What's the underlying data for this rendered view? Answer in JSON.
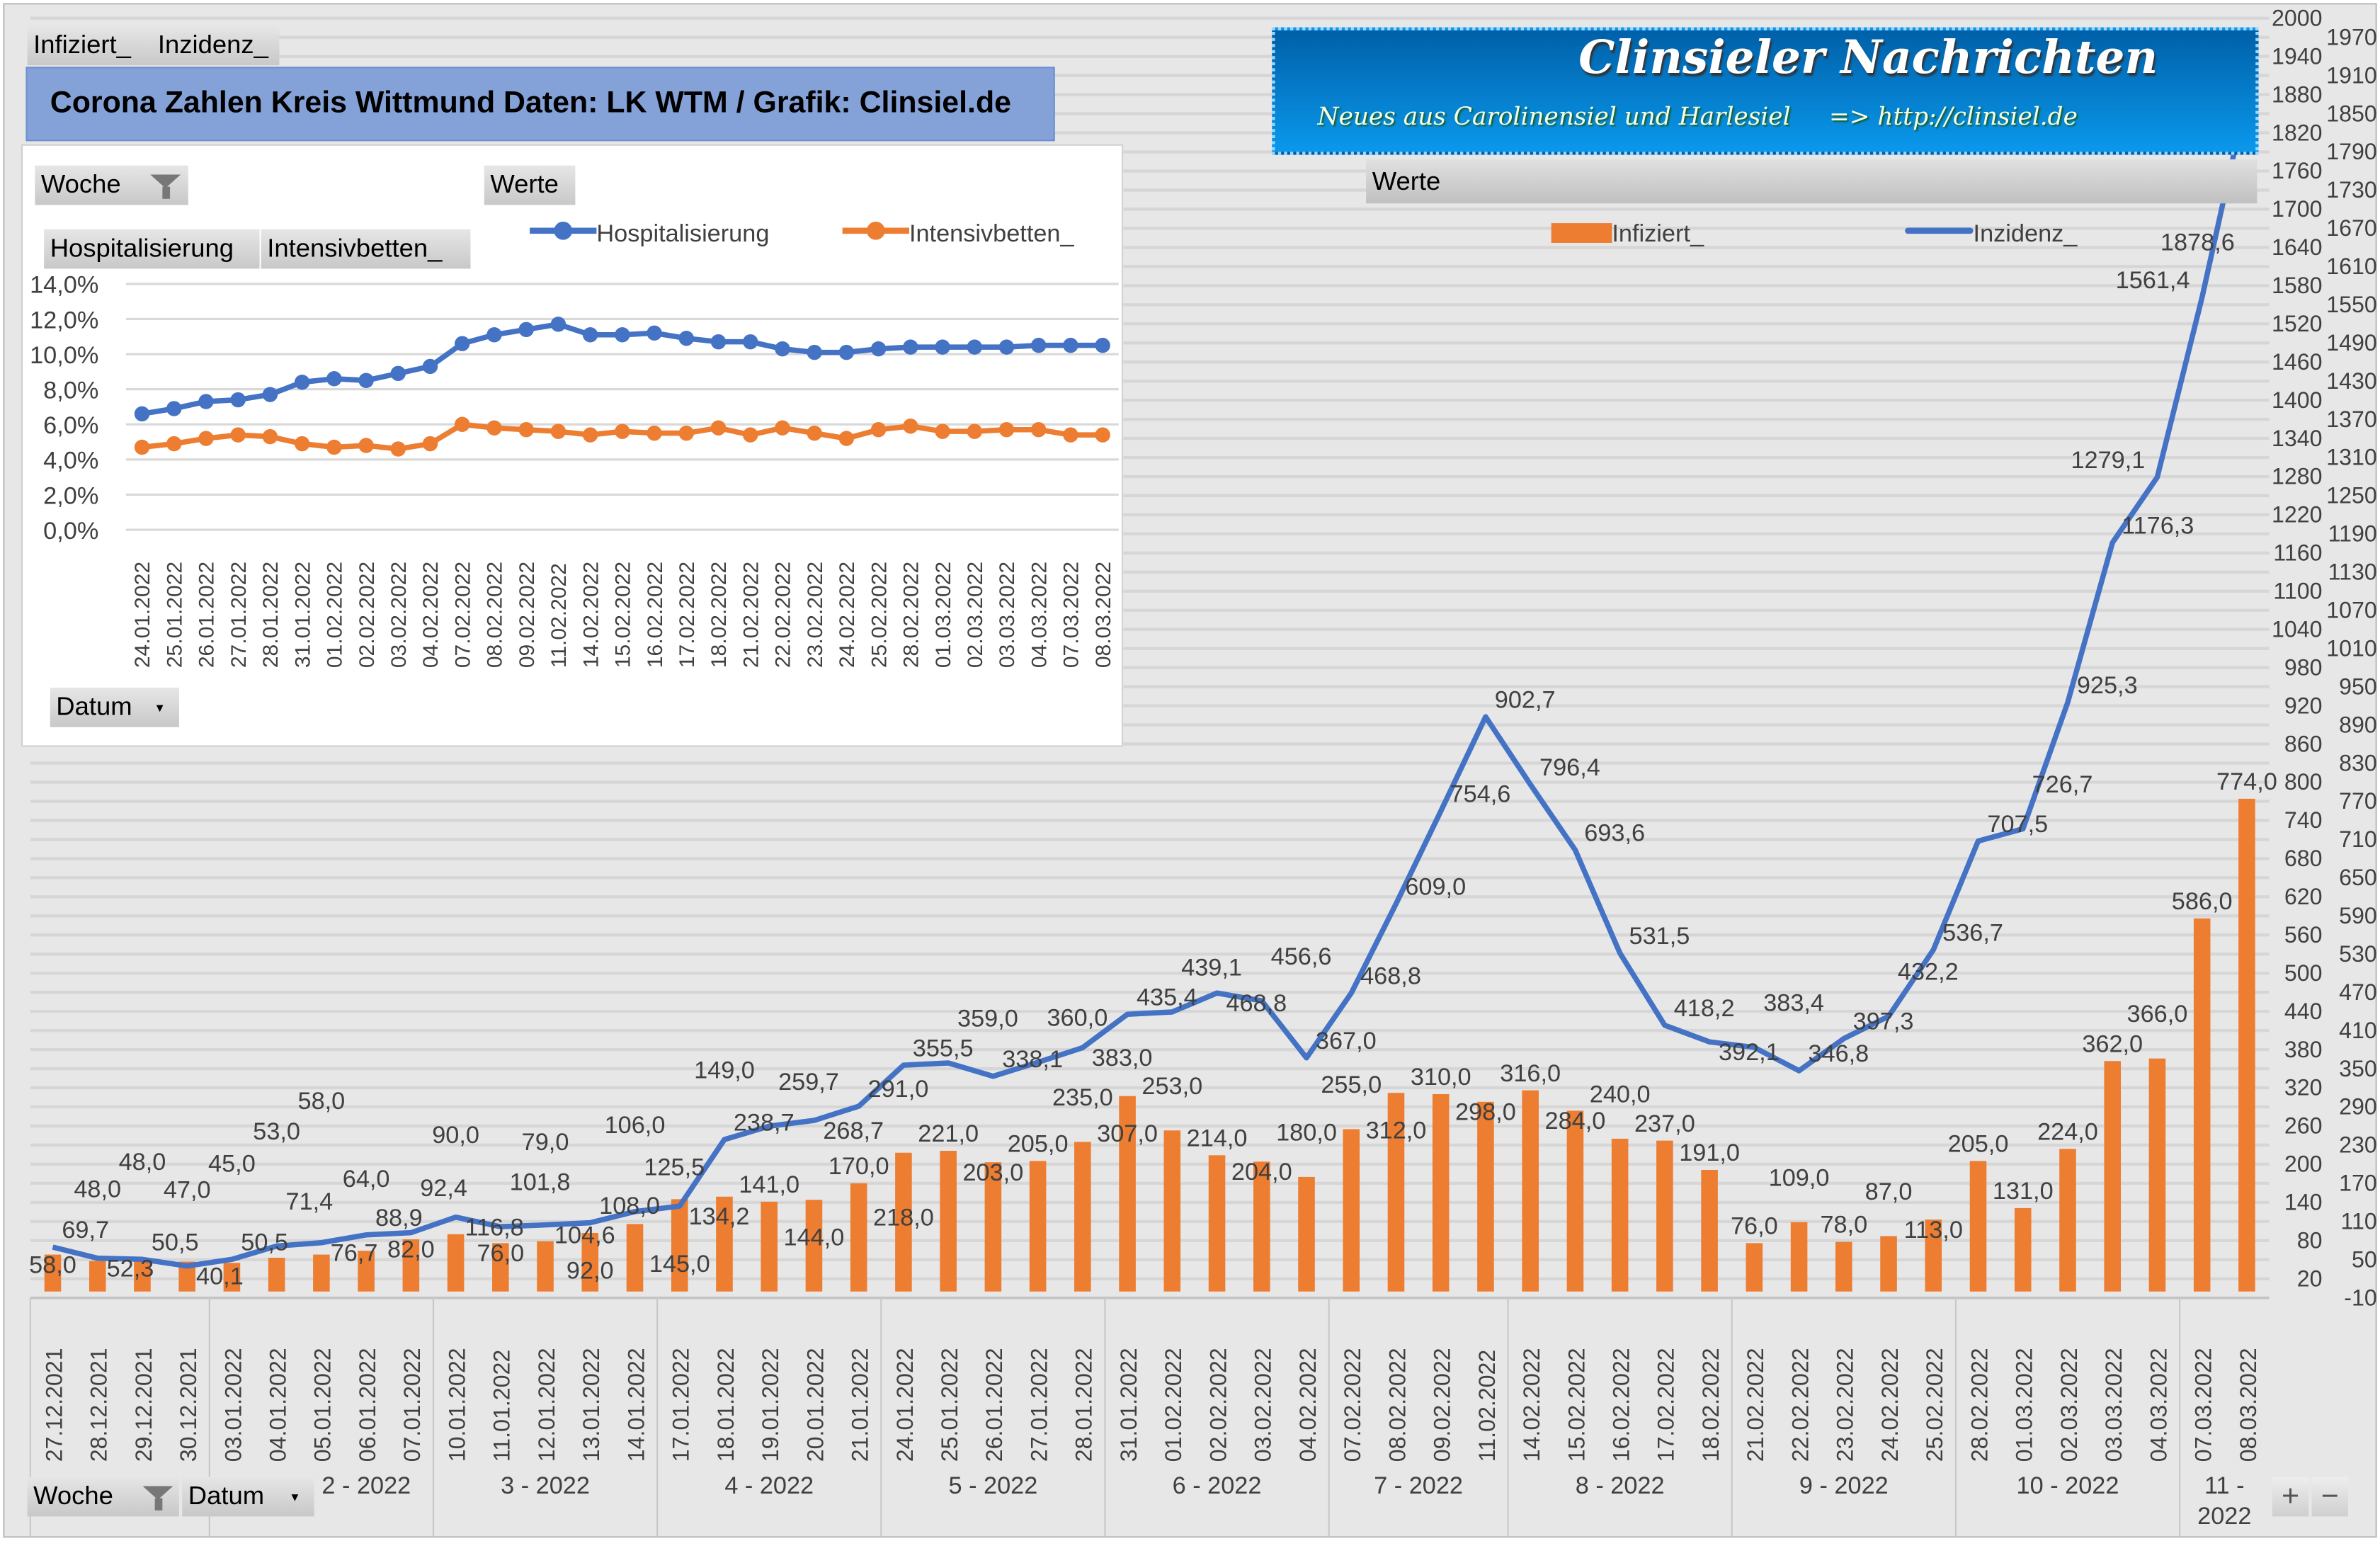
{
  "top_buttons": {
    "infiziert": "Infiziert_",
    "inzidenz": "Inzidenz_"
  },
  "title": "Corona Zahlen Kreis Wittmund  Daten: LK WTM / Grafik: Clinsiel.de",
  "logo": {
    "title": "Clinsieler Nachrichten",
    "subtitle": "Neues aus Carolinensiel und Harlesiel     => http://clinsiel.de"
  },
  "werte_label": "Werte",
  "bottom_buttons": {
    "woche": "Woche",
    "datum": "Datum",
    "plus": "+",
    "minus": "−"
  },
  "colors": {
    "infiziert": "#ed7d31",
    "inzidenz": "#4472c4",
    "hospitalisierung": "#4472c4",
    "intensivbetten": "#ed7d31",
    "title_bar": "#84a2d8"
  },
  "chart_data": [
    {
      "type": "bar+line",
      "legend": [
        "Infiziert_",
        "Inzidenz_"
      ],
      "legend_position": "top-right",
      "y_axis": {
        "position": "right",
        "min": -10,
        "max": 2000,
        "step": 30
      },
      "grid": true,
      "categories": [
        "27.12.2021",
        "28.12.2021",
        "29.12.2021",
        "30.12.2021",
        "03.01.2022",
        "04.01.2022",
        "05.01.2022",
        "06.01.2022",
        "07.01.2022",
        "10.01.2022",
        "11.01.2022",
        "12.01.2022",
        "13.01.2022",
        "14.01.2022",
        "17.01.2022",
        "18.01.2022",
        "19.01.2022",
        "20.01.2022",
        "21.01.2022",
        "24.01.2022",
        "25.01.2022",
        "26.01.2022",
        "27.01.2022",
        "28.01.2022",
        "31.01.2022",
        "01.02.2022",
        "02.02.2022",
        "03.02.2022",
        "04.02.2022",
        "07.02.2022",
        "08.02.2022",
        "09.02.2022",
        "11.02.2022",
        "14.02.2022",
        "15.02.2022",
        "16.02.2022",
        "17.02.2022",
        "18.02.2022",
        "21.02.2022",
        "22.02.2022",
        "23.02.2022",
        "24.02.2022",
        "25.02.2022",
        "28.02.2022",
        "01.03.2022",
        "02.03.2022",
        "03.03.2022",
        "04.03.2022",
        "07.03.2022",
        "08.03.2022"
      ],
      "week_groups": [
        {
          "label": "",
          "count": 4
        },
        {
          "label": "2 - 2022",
          "count": 5
        },
        {
          "label": "3 - 2022",
          "count": 5
        },
        {
          "label": "4 - 2022",
          "count": 5
        },
        {
          "label": "5 - 2022",
          "count": 5
        },
        {
          "label": "6 - 2022",
          "count": 5
        },
        {
          "label": "7 - 2022",
          "count": 4
        },
        {
          "label": "8 - 2022",
          "count": 5
        },
        {
          "label": "9 - 2022",
          "count": 5
        },
        {
          "label": "10 - 2022",
          "count": 5
        },
        {
          "label": "11 - 2022",
          "count": 2
        }
      ],
      "series": [
        {
          "name": "Infiziert_",
          "type": "bar",
          "values": [
            58,
            48,
            48,
            47,
            45,
            53,
            58,
            64,
            82,
            90,
            76,
            79,
            92,
            106,
            145,
            149,
            141,
            144,
            170,
            218,
            221,
            203,
            205,
            235,
            307,
            253,
            214,
            204,
            180,
            255,
            312,
            310,
            298,
            316,
            284,
            240,
            237,
            191,
            76,
            109,
            78,
            87,
            113,
            205,
            131,
            224,
            362,
            366,
            586,
            774
          ]
        },
        {
          "name": "Inzidenz_",
          "type": "line",
          "values": [
            69.7,
            52.3,
            50.5,
            40.1,
            50.5,
            71.4,
            76.7,
            88.9,
            92.4,
            116.8,
            101.8,
            104.6,
            108.0,
            125.5,
            134.2,
            238.7,
            259.7,
            268.7,
            291.0,
            355.5,
            359.0,
            338.1,
            360.0,
            383.0,
            435.4,
            439.1,
            468.8,
            456.6,
            367.0,
            468.8,
            609.0,
            754.6,
            902.7,
            796.4,
            693.6,
            531.5,
            418.2,
            392.1,
            383.4,
            346.8,
            397.3,
            432.2,
            536.7,
            707.5,
            726.7,
            925.3,
            1176.3,
            1279.1,
            1561.4,
            1878.6
          ]
        }
      ]
    },
    {
      "type": "line",
      "legend": [
        "Hospitalisierung",
        "Intensivbetten_"
      ],
      "legend_position": "top",
      "field_buttons": {
        "woche": "Woche",
        "werte": "Werte",
        "hospitalisierung": "Hospitalisierung",
        "intensivbetten": "Intensivbetten_",
        "datum": "Datum"
      },
      "y_axis": {
        "min": 0,
        "max": 14,
        "step": 2,
        "tick_labels": [
          "14,0%",
          "12,0%",
          "10,0%",
          "8,0%",
          "6,0%",
          "4,0%",
          "2,0%",
          "0,0%"
        ]
      },
      "grid": true,
      "categories": [
        "24.01.2022",
        "25.01.2022",
        "26.01.2022",
        "27.01.2022",
        "28.01.2022",
        "31.01.2022",
        "01.02.2022",
        "02.02.2022",
        "03.02.2022",
        "04.02.2022",
        "07.02.2022",
        "08.02.2022",
        "09.02.2022",
        "11.02.2022",
        "14.02.2022",
        "15.02.2022",
        "16.02.2022",
        "17.02.2022",
        "18.02.2022",
        "21.02.2022",
        "22.02.2022",
        "23.02.2022",
        "24.02.2022",
        "25.02.2022",
        "28.02.2022",
        "01.03.2022",
        "02.03.2022",
        "03.03.2022",
        "04.03.2022",
        "07.03.2022",
        "08.03.2022"
      ],
      "series": [
        {
          "name": "Hospitalisierung",
          "values": [
            6.6,
            6.9,
            7.3,
            7.4,
            7.7,
            8.4,
            8.6,
            8.5,
            8.9,
            9.3,
            10.6,
            11.1,
            11.4,
            11.7,
            11.1,
            11.1,
            11.2,
            10.9,
            10.7,
            10.7,
            10.3,
            10.1,
            10.1,
            10.3,
            10.4,
            10.4,
            10.4,
            10.4,
            10.5,
            10.5,
            10.5
          ]
        },
        {
          "name": "Intensivbetten_",
          "values": [
            4.7,
            4.9,
            5.2,
            5.4,
            5.3,
            4.9,
            4.7,
            4.8,
            4.6,
            4.9,
            6.0,
            5.8,
            5.7,
            5.6,
            5.4,
            5.6,
            5.5,
            5.5,
            5.8,
            5.4,
            5.8,
            5.5,
            5.2,
            5.7,
            5.9,
            5.6,
            5.6,
            5.7,
            5.7,
            5.4,
            5.4
          ]
        }
      ]
    }
  ]
}
